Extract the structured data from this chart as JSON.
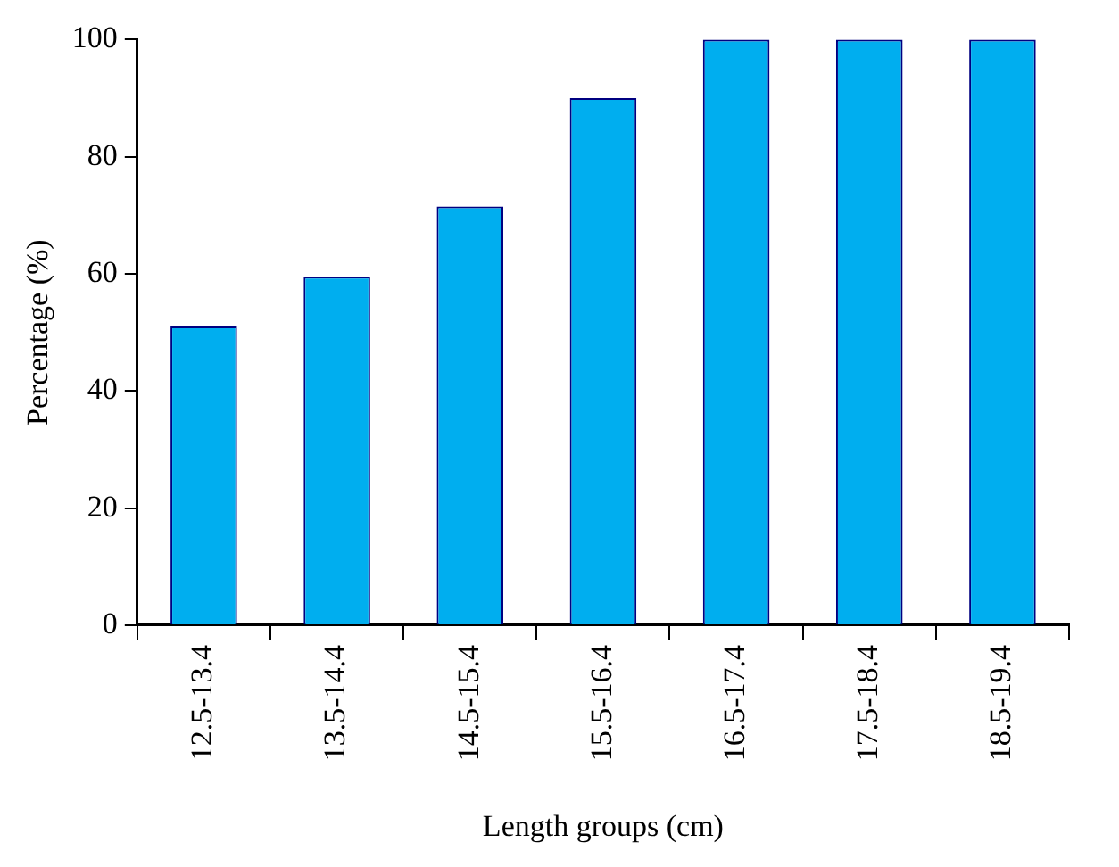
{
  "chart_data": {
    "type": "bar",
    "xlabel": "Length groups (cm)",
    "ylabel": "Percentage (%)",
    "categories": [
      "12.5-13.4",
      "13.5-14.4",
      "14.5-15.4",
      "15.5-16.4",
      "16.5-17.4",
      "17.5-18.4",
      "18.5-19.4"
    ],
    "series": [
      {
        "color": "#00aeef",
        "values": [
          51,
          59.5,
          71.5,
          90,
          100,
          100,
          100
        ]
      }
    ],
    "ylim": [
      0,
      100
    ],
    "yticks": [
      0,
      20,
      40,
      60,
      80,
      100
    ],
    "grid": false,
    "legend": false
  }
}
